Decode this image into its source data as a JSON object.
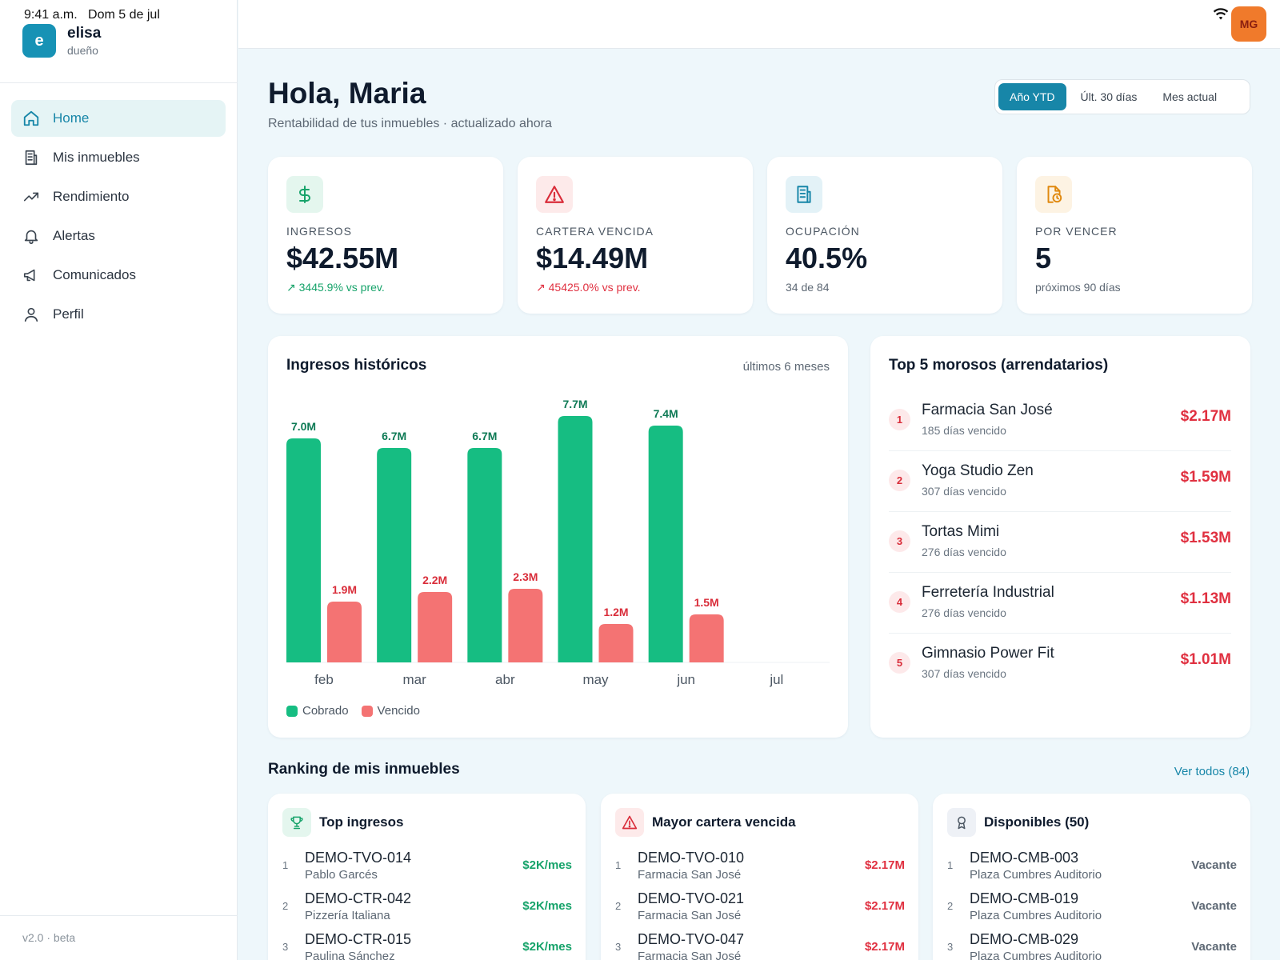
{
  "status_bar": {
    "time": "9:41 a.m.",
    "date": "Dom 5 de jul"
  },
  "brand": {
    "logo_letter": "e",
    "name": "elisa",
    "role": "dueño"
  },
  "sidebar": {
    "items": [
      {
        "label": "Home",
        "icon": "home-icon",
        "active": true
      },
      {
        "label": "Mis inmuebles",
        "icon": "building-icon",
        "active": false
      },
      {
        "label": "Rendimiento",
        "icon": "trend-icon",
        "active": false
      },
      {
        "label": "Alertas",
        "icon": "bell-icon",
        "active": false
      },
      {
        "label": "Comunicados",
        "icon": "megaphone-icon",
        "active": false
      },
      {
        "label": "Perfil",
        "icon": "user-icon",
        "active": false
      }
    ],
    "version": "v2.0 · beta"
  },
  "topbar": {
    "avatar_initials": "MG"
  },
  "header": {
    "greeting": "Hola, Maria",
    "subtitle": "Rentabilidad de tus inmuebles · actualizado ahora",
    "periods": [
      "Año YTD",
      "Últ. 30 días",
      "Mes actual"
    ],
    "active_period": "Año YTD"
  },
  "kpis": [
    {
      "label": "INGRESOS",
      "value": "$42.55M",
      "sub": "3445.9% vs prev.",
      "sub_color": "#16a36a",
      "icon": "dollar-icon",
      "icon_bg": "#e4f6ee",
      "icon_color": "#16a36a",
      "trend": true
    },
    {
      "label": "CARTERA VENCIDA",
      "value": "$14.49M",
      "sub": "45425.0% vs prev.",
      "sub_color": "#e03040",
      "icon": "warning-icon",
      "icon_bg": "#fdeaea",
      "icon_color": "#d92d3a",
      "trend": true
    },
    {
      "label": "OCUPACIÓN",
      "value": "40.5%",
      "sub": "34 de 84",
      "sub_color": "#5d6874",
      "icon": "building-icon",
      "icon_bg": "#e3f2f7",
      "icon_color": "#1786a8",
      "trend": false
    },
    {
      "label": "POR VENCER",
      "value": "5",
      "sub": "próximos 90 días",
      "sub_color": "#5d6874",
      "icon": "file-clock-icon",
      "icon_bg": "#fdf3e3",
      "icon_color": "#e0890f",
      "trend": false
    }
  ],
  "chart_card": {
    "title": "Ingresos históricos",
    "range_label": "últimos 6 meses"
  },
  "chart_data": {
    "type": "bar",
    "categories": [
      "feb",
      "mar",
      "abr",
      "may",
      "jun",
      "jul"
    ],
    "series": [
      {
        "name": "Cobrado",
        "color": "#16bd82",
        "values": [
          7.0,
          6.7,
          6.7,
          7.7,
          7.4,
          null
        ],
        "labels": [
          "7.0M",
          "6.7M",
          "6.7M",
          "7.7M",
          "7.4M",
          ""
        ],
        "label_color": "#0e7a55"
      },
      {
        "name": "Vencido",
        "color": "#f47373",
        "values": [
          1.9,
          2.2,
          2.3,
          1.2,
          1.5,
          null
        ],
        "labels": [
          "1.9M",
          "2.2M",
          "2.3M",
          "1.2M",
          "1.5M",
          ""
        ],
        "label_color": "#d92d3a"
      }
    ],
    "ylim": [
      0,
      8.0
    ],
    "grid": false,
    "legend": "bottom-left"
  },
  "morosos": {
    "title": "Top 5 morosos (arrendatarios)",
    "items": [
      {
        "rank": "1",
        "name": "Farmacia San José",
        "days": "185 días vencido",
        "amount": "$2.17M"
      },
      {
        "rank": "2",
        "name": "Yoga Studio Zen",
        "days": "307 días vencido",
        "amount": "$1.59M"
      },
      {
        "rank": "3",
        "name": "Tortas Mimi",
        "days": "276 días vencido",
        "amount": "$1.53M"
      },
      {
        "rank": "4",
        "name": "Ferretería Industrial",
        "days": "276 días vencido",
        "amount": "$1.13M"
      },
      {
        "rank": "5",
        "name": "Gimnasio Power Fit",
        "days": "307 días vencido",
        "amount": "$1.01M"
      }
    ]
  },
  "ranking": {
    "title": "Ranking de mis inmuebles",
    "see_all": "Ver todos (84)",
    "cards": [
      {
        "title": "Top ingresos",
        "icon": "trophy-icon",
        "icon_bg": "#e4f6ee",
        "icon_color": "#16a36a",
        "value_color": "#16a36a",
        "rows": [
          {
            "num": "1",
            "code": "DEMO-TVO-014",
            "sub": "Pablo Garcés",
            "value": "$2K/mes"
          },
          {
            "num": "2",
            "code": "DEMO-CTR-042",
            "sub": "Pizzería Italiana",
            "value": "$2K/mes"
          },
          {
            "num": "3",
            "code": "DEMO-CTR-015",
            "sub": "Paulina Sánchez",
            "value": "$2K/mes"
          }
        ]
      },
      {
        "title": "Mayor cartera vencida",
        "icon": "warning-icon",
        "icon_bg": "#fdeaea",
        "icon_color": "#d92d3a",
        "value_color": "#e03040",
        "rows": [
          {
            "num": "1",
            "code": "DEMO-TVO-010",
            "sub": "Farmacia San José",
            "value": "$2.17M"
          },
          {
            "num": "2",
            "code": "DEMO-TVO-021",
            "sub": "Farmacia San José",
            "value": "$2.17M"
          },
          {
            "num": "3",
            "code": "DEMO-TVO-047",
            "sub": "Farmacia San José",
            "value": "$2.17M"
          }
        ]
      },
      {
        "title": "Disponibles (50)",
        "icon": "award-icon",
        "icon_bg": "#eef1f6",
        "icon_color": "#4c5763",
        "value_color": "#5d6874",
        "rows": [
          {
            "num": "1",
            "code": "DEMO-CMB-003",
            "sub": "Plaza Cumbres Auditorio",
            "value": "Vacante"
          },
          {
            "num": "2",
            "code": "DEMO-CMB-019",
            "sub": "Plaza Cumbres Auditorio",
            "value": "Vacante"
          },
          {
            "num": "3",
            "code": "DEMO-CMB-029",
            "sub": "Plaza Cumbres Auditorio",
            "value": "Vacante"
          }
        ]
      }
    ]
  }
}
